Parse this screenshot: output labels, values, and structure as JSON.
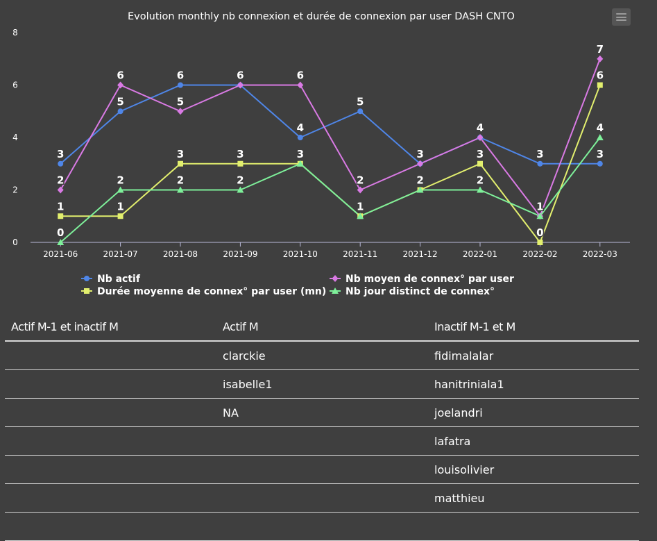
{
  "chart_data": {
    "type": "line",
    "title": "Evolution monthly nb connexion et durée de connexion par user DASH CNTO",
    "categories": [
      "2021-06",
      "2021-07",
      "2021-08",
      "2021-09",
      "2021-10",
      "2021-11",
      "2021-12",
      "2022-01",
      "2022-02",
      "2022-03"
    ],
    "ylim": [
      0,
      8
    ],
    "yticks": [
      0,
      2,
      4,
      6,
      8
    ],
    "grid": false,
    "legend_position": "bottom",
    "series": [
      {
        "name": "Nb actif",
        "values": [
          3,
          5,
          6,
          6,
          4,
          5,
          3,
          4,
          3,
          3
        ],
        "color": "#4f86e8",
        "marker": "circle"
      },
      {
        "name": "Nb moyen de connex° par user",
        "values": [
          2,
          6,
          5,
          6,
          6,
          2,
          3,
          4,
          1,
          7
        ],
        "color": "#d97ae4",
        "marker": "diamond"
      },
      {
        "name": "Durée moyenne de connex° par user (mn)",
        "values": [
          1,
          1,
          3,
          3,
          3,
          1,
          2,
          3,
          0,
          6
        ],
        "color": "#e2ef6e",
        "marker": "square"
      },
      {
        "name": "Nb jour distinct de connex°",
        "values": [
          0,
          2,
          2,
          2,
          3,
          1,
          2,
          2,
          1,
          4
        ],
        "color": "#7ef09a",
        "marker": "triangle"
      }
    ]
  },
  "table": {
    "headers": [
      "Actif M-1 et inactif M",
      "Actif M",
      "Inactif M-1 et M"
    ],
    "rows": [
      [
        "",
        "clarckie",
        "fidimalalar"
      ],
      [
        "",
        "isabelle1",
        "hanitriniala1"
      ],
      [
        "",
        "NA",
        "joelandri"
      ],
      [
        "",
        "",
        "lafatra"
      ],
      [
        "",
        "",
        "louisolivier"
      ],
      [
        "",
        "",
        "matthieu"
      ],
      [
        "",
        "",
        ""
      ]
    ]
  }
}
